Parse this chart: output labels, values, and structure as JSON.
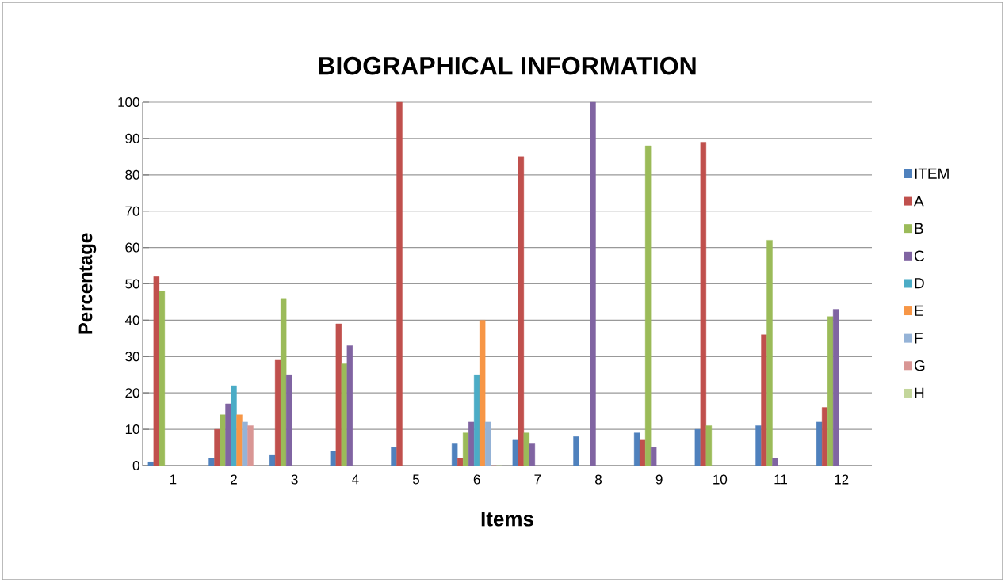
{
  "chart_data": {
    "type": "bar",
    "title": "BIOGRAPHICAL INFORMATION",
    "xlabel": "Items",
    "ylabel": "Percentage",
    "categories": [
      "1",
      "2",
      "3",
      "4",
      "5",
      "6",
      "7",
      "8",
      "9",
      "10",
      "11",
      "12"
    ],
    "series": [
      {
        "name": "ITEM",
        "color": "#4f81bd",
        "values": [
          1,
          2,
          3,
          4,
          5,
          6,
          7,
          8,
          9,
          10,
          11,
          12
        ]
      },
      {
        "name": "A",
        "color": "#c0504d",
        "values": [
          52,
          10,
          29,
          39,
          100,
          2,
          85,
          null,
          7,
          89,
          36,
          16
        ]
      },
      {
        "name": "B",
        "color": "#9bbb59",
        "values": [
          48,
          14,
          46,
          28,
          null,
          9,
          9,
          null,
          88,
          11,
          62,
          41
        ]
      },
      {
        "name": "C",
        "color": "#8064a2",
        "values": [
          null,
          17,
          25,
          33,
          null,
          12,
          6,
          100,
          5,
          null,
          2,
          43
        ]
      },
      {
        "name": "D",
        "color": "#4bacc6",
        "values": [
          null,
          22,
          null,
          null,
          null,
          25,
          null,
          null,
          null,
          null,
          null,
          null
        ]
      },
      {
        "name": "E",
        "color": "#f79646",
        "values": [
          null,
          14,
          null,
          null,
          null,
          40,
          null,
          null,
          null,
          null,
          null,
          null
        ]
      },
      {
        "name": "F",
        "color": "#95b3d7",
        "values": [
          null,
          12,
          null,
          null,
          null,
          12,
          null,
          null,
          null,
          null,
          null,
          null
        ]
      },
      {
        "name": "G",
        "color": "#d99694",
        "values": [
          null,
          11,
          null,
          null,
          null,
          0,
          null,
          null,
          null,
          null,
          null,
          null
        ]
      },
      {
        "name": "H",
        "color": "#c3d69b",
        "values": [
          null,
          null,
          null,
          null,
          null,
          0,
          null,
          null,
          null,
          null,
          null,
          null
        ]
      }
    ],
    "ylim": [
      0,
      100
    ],
    "yticks": [
      0,
      10,
      20,
      30,
      40,
      50,
      60,
      70,
      80,
      90,
      100
    ],
    "grid": "y",
    "legend": "right"
  }
}
